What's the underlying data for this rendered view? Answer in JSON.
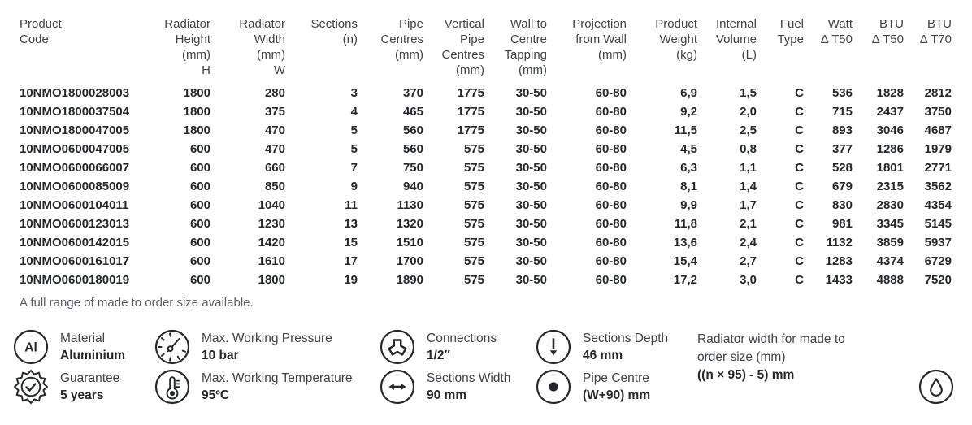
{
  "colors": {
    "text_data": "#24272b",
    "text_header": "#3d424a",
    "text_note": "#5a5f66",
    "icon_stroke": "#24272b",
    "background": "#ffffff"
  },
  "table": {
    "columns": [
      {
        "lines": [
          "Product",
          "Code"
        ],
        "align": "left"
      },
      {
        "lines": [
          "Radiator",
          "Height",
          "(mm)",
          "H"
        ],
        "align": "right"
      },
      {
        "lines": [
          "Radiator",
          "Width",
          "(mm)",
          "W"
        ],
        "align": "right"
      },
      {
        "lines": [
          "Sections",
          "(n)"
        ],
        "align": "right"
      },
      {
        "lines": [
          "Pipe",
          "Centres",
          "(mm)"
        ],
        "align": "right"
      },
      {
        "lines": [
          "Vertical",
          "Pipe",
          "Centres",
          "(mm)"
        ],
        "align": "right"
      },
      {
        "lines": [
          "Wall to",
          "Centre",
          "Tapping",
          "(mm)"
        ],
        "align": "right"
      },
      {
        "lines": [
          "Projection",
          "from Wall",
          "(mm)"
        ],
        "align": "right"
      },
      {
        "lines": [
          "Product",
          "Weight",
          "(kg)"
        ],
        "align": "right"
      },
      {
        "lines": [
          "Internal",
          "Volume",
          "(L)"
        ],
        "align": "right"
      },
      {
        "lines": [
          "Fuel",
          "Type"
        ],
        "align": "right"
      },
      {
        "lines": [
          "Watt",
          "Δ T50"
        ],
        "align": "right"
      },
      {
        "lines": [
          "BTU",
          "Δ T50"
        ],
        "align": "right"
      },
      {
        "lines": [
          "BTU",
          "Δ T70"
        ],
        "align": "right"
      }
    ],
    "rows": [
      [
        "10NMO1800028003",
        "1800",
        "280",
        "3",
        "370",
        "1775",
        "30-50",
        "60-80",
        "6,9",
        "1,5",
        "C",
        "536",
        "1828",
        "2812"
      ],
      [
        "10NMO1800037504",
        "1800",
        "375",
        "4",
        "465",
        "1775",
        "30-50",
        "60-80",
        "9,2",
        "2,0",
        "C",
        "715",
        "2437",
        "3750"
      ],
      [
        "10NMO1800047005",
        "1800",
        "470",
        "5",
        "560",
        "1775",
        "30-50",
        "60-80",
        "11,5",
        "2,5",
        "C",
        "893",
        "3046",
        "4687"
      ],
      [
        "10NMO0600047005",
        "600",
        "470",
        "5",
        "560",
        "575",
        "30-50",
        "60-80",
        "4,5",
        "0,8",
        "C",
        "377",
        "1286",
        "1979"
      ],
      [
        "10NMO0600066007",
        "600",
        "660",
        "7",
        "750",
        "575",
        "30-50",
        "60-80",
        "6,3",
        "1,1",
        "C",
        "528",
        "1801",
        "2771"
      ],
      [
        "10NMO0600085009",
        "600",
        "850",
        "9",
        "940",
        "575",
        "30-50",
        "60-80",
        "8,1",
        "1,4",
        "C",
        "679",
        "2315",
        "3562"
      ],
      [
        "10NMO0600104011",
        "600",
        "1040",
        "11",
        "1130",
        "575",
        "30-50",
        "60-80",
        "9,9",
        "1,7",
        "C",
        "830",
        "2830",
        "4354"
      ],
      [
        "10NMO0600123013",
        "600",
        "1230",
        "13",
        "1320",
        "575",
        "30-50",
        "60-80",
        "11,8",
        "2,1",
        "C",
        "981",
        "3345",
        "5145"
      ],
      [
        "10NMO0600142015",
        "600",
        "1420",
        "15",
        "1510",
        "575",
        "30-50",
        "60-80",
        "13,6",
        "2,4",
        "C",
        "1132",
        "3859",
        "5937"
      ],
      [
        "10NMO0600161017",
        "600",
        "1610",
        "17",
        "1700",
        "575",
        "30-50",
        "60-80",
        "15,4",
        "2,7",
        "C",
        "1283",
        "4374",
        "6729"
      ],
      [
        "10NMO0600180019",
        "600",
        "1800",
        "19",
        "1890",
        "575",
        "30-50",
        "60-80",
        "17,2",
        "3,0",
        "C",
        "1433",
        "4888",
        "7520"
      ]
    ],
    "footnote": "A full range of made to order size available."
  },
  "legend": {
    "columns": [
      {
        "items": [
          {
            "icon": "aluminium-icon",
            "label": "Material",
            "value": "Aluminium"
          },
          {
            "icon": "guarantee-seal-icon",
            "label": "Guarantee",
            "value": "5 years"
          }
        ]
      },
      {
        "items": [
          {
            "icon": "pressure-gauge-icon",
            "label": "Max. Working Pressure",
            "value": "10 bar"
          },
          {
            "icon": "thermometer-icon",
            "label": "Max. Working Temperature",
            "value": "95ºC"
          }
        ]
      },
      {
        "items": [
          {
            "icon": "connections-icon",
            "label": "Connections",
            "value": "1/2″"
          },
          {
            "icon": "sections-width-icon",
            "label": "Sections Width",
            "value": "90 mm"
          }
        ]
      },
      {
        "items": [
          {
            "icon": "sections-depth-icon",
            "label": "Sections Depth",
            "value": "46 mm"
          },
          {
            "icon": "pipe-centre-icon",
            "label": "Pipe Centre",
            "value": "(W+90) mm"
          }
        ]
      }
    ],
    "made_to_order": {
      "line1": "Radiator width for made to",
      "line2": "order size (mm)",
      "formula": "((n × 95) - 5) mm"
    }
  }
}
